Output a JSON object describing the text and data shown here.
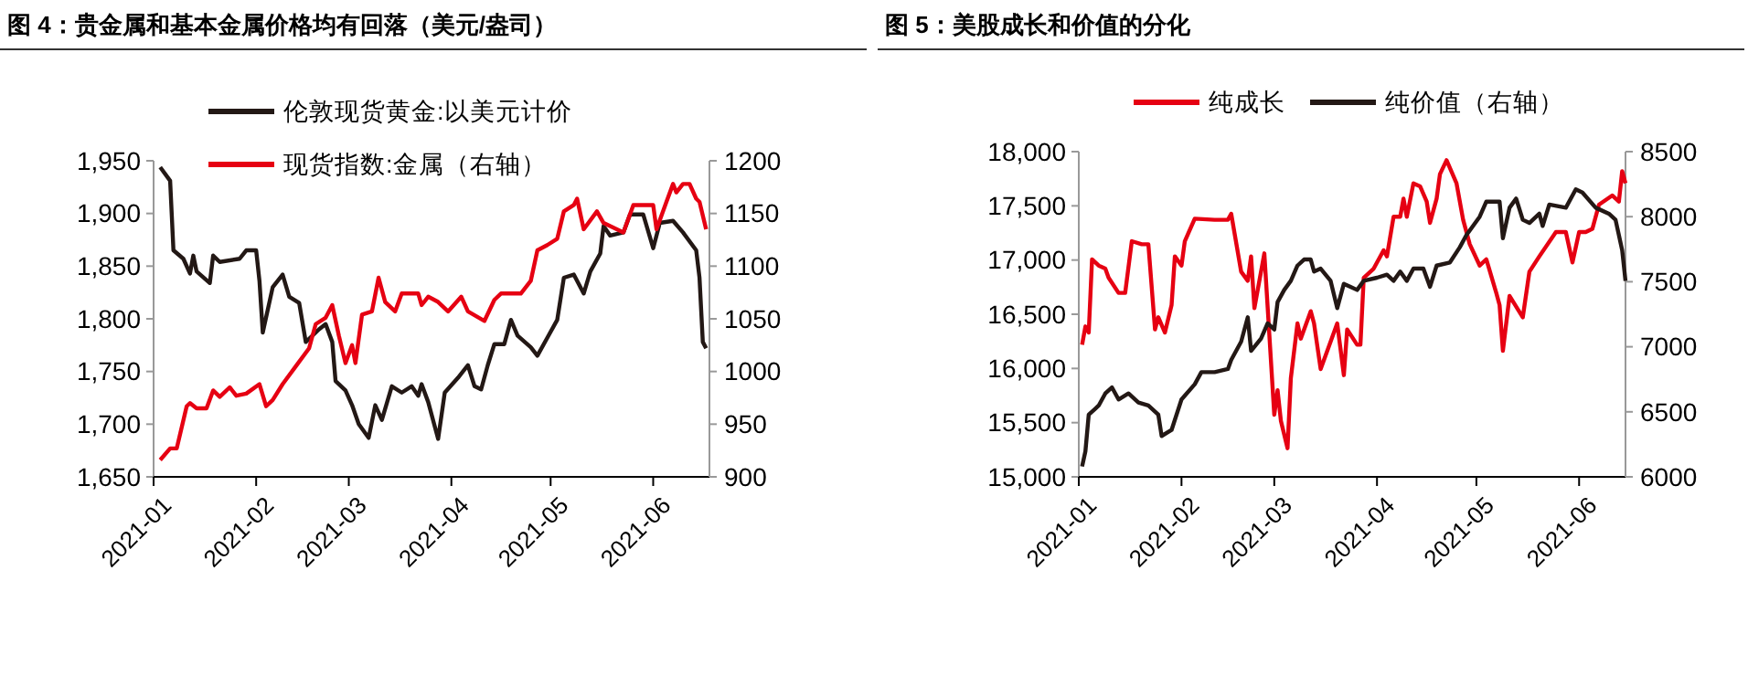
{
  "chart_data": [
    {
      "type": "line",
      "title": "图 4：贵金属和基本金属价格均有回落（美元/盎司）",
      "legend": "top",
      "line_style": "solid",
      "marker": "none",
      "grid": false,
      "xlim": [
        "2021-01-01",
        "2021-06-18"
      ],
      "xticks": [
        "2021-01",
        "2021-02",
        "2021-03",
        "2021-04",
        "2021-05",
        "2021-06"
      ],
      "ylim": [
        1650,
        1950
      ],
      "yticks": [
        {
          "value": 1650,
          "label": "1,650"
        },
        {
          "value": 1700,
          "label": "1,700"
        },
        {
          "value": 1750,
          "label": "1,750"
        },
        {
          "value": 1800,
          "label": "1,800"
        },
        {
          "value": 1850,
          "label": "1,850"
        },
        {
          "value": 1900,
          "label": "1,900"
        },
        {
          "value": 1950,
          "label": "1,950"
        }
      ],
      "y2lim": [
        900,
        1200
      ],
      "y2ticks": [
        900,
        950,
        1000,
        1050,
        1100,
        1150,
        1200
      ],
      "series": [
        {
          "name": "伦敦现货黄金:以美元计价",
          "color": "#231815",
          "x": [
            "2021-01-03",
            "2021-01-06",
            "2021-01-07",
            "2021-01-10",
            "2021-01-12",
            "2021-01-13",
            "2021-01-14",
            "2021-01-18",
            "2021-01-19",
            "2021-01-21",
            "2021-01-27",
            "2021-01-29",
            "2021-02-01",
            "2021-02-02",
            "2021-02-03",
            "2021-02-06",
            "2021-02-09",
            "2021-02-11",
            "2021-02-14",
            "2021-02-16",
            "2021-02-20",
            "2021-02-22",
            "2021-02-24",
            "2021-02-25",
            "2021-02-28",
            "2021-03-02",
            "2021-03-04",
            "2021-03-07",
            "2021-03-09",
            "2021-03-11",
            "2021-03-14",
            "2021-03-17",
            "2021-03-20",
            "2021-03-22",
            "2021-03-23",
            "2021-03-25",
            "2021-03-28",
            "2021-03-30",
            "2021-04-03",
            "2021-04-06",
            "2021-04-08",
            "2021-04-10",
            "2021-04-12",
            "2021-04-14",
            "2021-04-17",
            "2021-04-19",
            "2021-04-21",
            "2021-04-25",
            "2021-04-27",
            "2021-04-30",
            "2021-05-03",
            "2021-05-05",
            "2021-05-08",
            "2021-05-11",
            "2021-05-13",
            "2021-05-16",
            "2021-05-17",
            "2021-05-19",
            "2021-05-23",
            "2021-05-25",
            "2021-05-29",
            "2021-06-01",
            "2021-06-03",
            "2021-06-07",
            "2021-06-10",
            "2021-06-14",
            "2021-06-15",
            "2021-06-16",
            "2021-06-17"
          ],
          "values": [
            1944,
            1931,
            1865,
            1857,
            1843,
            1860,
            1845,
            1834,
            1860,
            1854,
            1857,
            1865,
            1865,
            1836,
            1787,
            1830,
            1842,
            1821,
            1815,
            1778,
            1790,
            1795,
            1778,
            1741,
            1732,
            1718,
            1700,
            1687,
            1718,
            1704,
            1736,
            1730,
            1736,
            1727,
            1738,
            1721,
            1686,
            1730,
            1744,
            1756,
            1736,
            1733,
            1756,
            1776,
            1776,
            1799,
            1784,
            1773,
            1765,
            1782,
            1799,
            1839,
            1842,
            1824,
            1845,
            1862,
            1888,
            1879,
            1882,
            1899,
            1899,
            1867,
            1891,
            1893,
            1882,
            1865,
            1839,
            1778,
            1772
          ]
        },
        {
          "name": "现货指数:金属（右轴）",
          "color": "#e60012",
          "axis": "y2",
          "x": [
            "2021-01-03",
            "2021-01-06",
            "2021-01-08",
            "2021-01-11",
            "2021-01-12",
            "2021-01-14",
            "2021-01-17",
            "2021-01-19",
            "2021-01-21",
            "2021-01-24",
            "2021-01-26",
            "2021-01-29",
            "2021-02-02",
            "2021-02-04",
            "2021-02-06",
            "2021-02-09",
            "2021-02-13",
            "2021-02-17",
            "2021-02-19",
            "2021-02-22",
            "2021-02-24",
            "2021-02-26",
            "2021-02-28",
            "2021-03-02",
            "2021-03-03",
            "2021-03-05",
            "2021-03-08",
            "2021-03-10",
            "2021-03-12",
            "2021-03-15",
            "2021-03-17",
            "2021-03-22",
            "2021-03-23",
            "2021-03-25",
            "2021-03-28",
            "2021-03-31",
            "2021-04-04",
            "2021-04-06",
            "2021-04-11",
            "2021-04-14",
            "2021-04-16",
            "2021-04-22",
            "2021-04-25",
            "2021-04-27",
            "2021-04-30",
            "2021-05-03",
            "2021-05-05",
            "2021-05-08",
            "2021-05-09",
            "2021-05-11",
            "2021-05-15",
            "2021-05-17",
            "2021-05-23",
            "2021-05-26",
            "2021-06-01",
            "2021-06-02",
            "2021-06-05",
            "2021-06-07",
            "2021-06-08",
            "2021-06-10",
            "2021-06-12",
            "2021-06-14",
            "2021-06-15",
            "2021-06-17"
          ],
          "values": [
            916,
            927,
            927,
            967,
            970,
            965,
            965,
            982,
            976,
            985,
            977,
            979,
            988,
            967,
            973,
            988,
            1005,
            1022,
            1045,
            1051,
            1063,
            1034,
            1008,
            1025,
            1008,
            1054,
            1057,
            1089,
            1066,
            1057,
            1074,
            1074,
            1063,
            1071,
            1066,
            1057,
            1071,
            1057,
            1048,
            1068,
            1074,
            1074,
            1086,
            1115,
            1120,
            1126,
            1152,
            1158,
            1164,
            1135,
            1152,
            1141,
            1132,
            1158,
            1158,
            1135,
            1161,
            1178,
            1170,
            1178,
            1178,
            1164,
            1161,
            1135
          ]
        }
      ]
    },
    {
      "type": "line",
      "title": "图 5：美股成长和价值的分化",
      "legend": "top",
      "line_style": "solid",
      "marker": "none",
      "grid": false,
      "xlim": [
        "2021-01-01",
        "2021-06-15"
      ],
      "xticks": [
        "2021-01",
        "2021-02",
        "2021-03",
        "2021-04",
        "2021-05",
        "2021-06"
      ],
      "ylim": [
        15000,
        18000
      ],
      "yticks": [
        {
          "value": 15000,
          "label": "15,000"
        },
        {
          "value": 15500,
          "label": "15,500"
        },
        {
          "value": 16000,
          "label": "16,000"
        },
        {
          "value": 16500,
          "label": "16,500"
        },
        {
          "value": 17000,
          "label": "17,000"
        },
        {
          "value": 17500,
          "label": "17,500"
        },
        {
          "value": 18000,
          "label": "18,000"
        }
      ],
      "y2lim": [
        6000,
        8500
      ],
      "y2ticks": [
        6000,
        6500,
        7000,
        7500,
        8000,
        8500
      ],
      "series": [
        {
          "name": "纯成长",
          "color": "#e60012",
          "x": [
            "2021-01-02",
            "2021-01-03",
            "2021-01-04",
            "2021-01-05",
            "2021-01-07",
            "2021-01-09",
            "2021-01-10",
            "2021-01-13",
            "2021-01-15",
            "2021-01-17",
            "2021-01-20",
            "2021-01-22",
            "2021-01-24",
            "2021-01-25",
            "2021-01-27",
            "2021-01-29",
            "2021-01-30",
            "2021-02-01",
            "2021-02-02",
            "2021-02-05",
            "2021-02-11",
            "2021-02-15",
            "2021-02-16",
            "2021-02-19",
            "2021-02-21",
            "2021-02-22",
            "2021-02-23",
            "2021-02-26",
            "2021-03-01",
            "2021-03-02",
            "2021-03-03",
            "2021-03-05",
            "2021-03-06",
            "2021-03-08",
            "2021-03-09",
            "2021-03-12",
            "2021-03-13",
            "2021-03-15",
            "2021-03-18",
            "2021-03-20",
            "2021-03-22",
            "2021-03-23",
            "2021-03-26",
            "2021-03-27",
            "2021-03-28",
            "2021-03-31",
            "2021-04-03",
            "2021-04-04",
            "2021-04-06",
            "2021-04-08",
            "2021-04-09",
            "2021-04-10",
            "2021-04-12",
            "2021-04-14",
            "2021-04-16",
            "2021-04-17",
            "2021-04-19",
            "2021-04-20",
            "2021-04-22",
            "2021-04-25",
            "2021-04-27",
            "2021-04-29",
            "2021-05-02",
            "2021-05-04",
            "2021-05-07",
            "2021-05-08",
            "2021-05-09",
            "2021-05-11",
            "2021-05-15",
            "2021-05-17",
            "2021-05-20",
            "2021-05-25",
            "2021-05-28",
            "2021-05-30",
            "2021-06-01",
            "2021-06-03",
            "2021-06-05",
            "2021-06-07",
            "2021-06-11",
            "2021-06-13",
            "2021-06-14",
            "2021-06-15"
          ],
          "values": [
            16219,
            16388,
            16331,
            17006,
            16949,
            16921,
            16837,
            16697,
            16697,
            17174,
            17146,
            17146,
            16360,
            16472,
            16331,
            16584,
            17034,
            16949,
            17174,
            17382,
            17371,
            17371,
            17427,
            16893,
            16809,
            17034,
            16556,
            17062,
            15573,
            15798,
            15517,
            15264,
            15910,
            16416,
            16275,
            16528,
            16416,
            15994,
            16247,
            16416,
            15938,
            16360,
            16219,
            16219,
            16837,
            16921,
            17090,
            17034,
            17399,
            17399,
            17567,
            17399,
            17708,
            17680,
            17539,
            17343,
            17567,
            17792,
            17921,
            17708,
            17371,
            17146,
            16949,
            17006,
            16697,
            16584,
            16163,
            16669,
            16472,
            16893,
            17034,
            17258,
            17258,
            16978,
            17258,
            17258,
            17287,
            17511,
            17596,
            17539,
            17820,
            17708
          ]
        },
        {
          "name": "纯价值（右轴）",
          "color": "#231815",
          "axis": "y2",
          "x": [
            "2021-01-02",
            "2021-01-03",
            "2021-01-04",
            "2021-01-06",
            "2021-01-07",
            "2021-01-09",
            "2021-01-11",
            "2021-01-13",
            "2021-01-16",
            "2021-01-19",
            "2021-01-22",
            "2021-01-25",
            "2021-01-26",
            "2021-01-29",
            "2021-02-01",
            "2021-02-05",
            "2021-02-07",
            "2021-02-11",
            "2021-02-15",
            "2021-02-16",
            "2021-02-19",
            "2021-02-21",
            "2021-02-22",
            "2021-02-25",
            "2021-02-27",
            "2021-03-01",
            "2021-03-02",
            "2021-03-04",
            "2021-03-06",
            "2021-03-08",
            "2021-03-10",
            "2021-03-12",
            "2021-03-13",
            "2021-03-15",
            "2021-03-18",
            "2021-03-20",
            "2021-03-22",
            "2021-03-24",
            "2021-03-26",
            "2021-03-28",
            "2021-04-01",
            "2021-04-04",
            "2021-04-06",
            "2021-04-08",
            "2021-04-10",
            "2021-04-12",
            "2021-04-15",
            "2021-04-17",
            "2021-04-19",
            "2021-04-23",
            "2021-04-26",
            "2021-04-28",
            "2021-05-02",
            "2021-05-04",
            "2021-05-08",
            "2021-05-09",
            "2021-05-11",
            "2021-05-13",
            "2021-05-15",
            "2021-05-17",
            "2021-05-20",
            "2021-05-21",
            "2021-05-23",
            "2021-05-28",
            "2021-05-31",
            "2021-06-02",
            "2021-06-06",
            "2021-06-10",
            "2021-06-12",
            "2021-06-14",
            "2021-06-15"
          ],
          "values": [
            6080,
            6197,
            6478,
            6524,
            6548,
            6641,
            6688,
            6595,
            6641,
            6571,
            6548,
            6478,
            6314,
            6360,
            6595,
            6712,
            6805,
            6805,
            6829,
            6899,
            7039,
            7227,
            6969,
            7063,
            7180,
            7133,
            7344,
            7437,
            7507,
            7624,
            7671,
            7671,
            7578,
            7601,
            7507,
            7297,
            7484,
            7461,
            7437,
            7507,
            7531,
            7554,
            7507,
            7578,
            7507,
            7601,
            7601,
            7461,
            7624,
            7648,
            7765,
            7859,
            8000,
            8116,
            8116,
            7835,
            8069,
            8139,
            7976,
            7952,
            8023,
            7929,
            8093,
            8069,
            8210,
            8186,
            8069,
            8023,
            7976,
            7742,
            7507
          ]
        }
      ]
    }
  ]
}
